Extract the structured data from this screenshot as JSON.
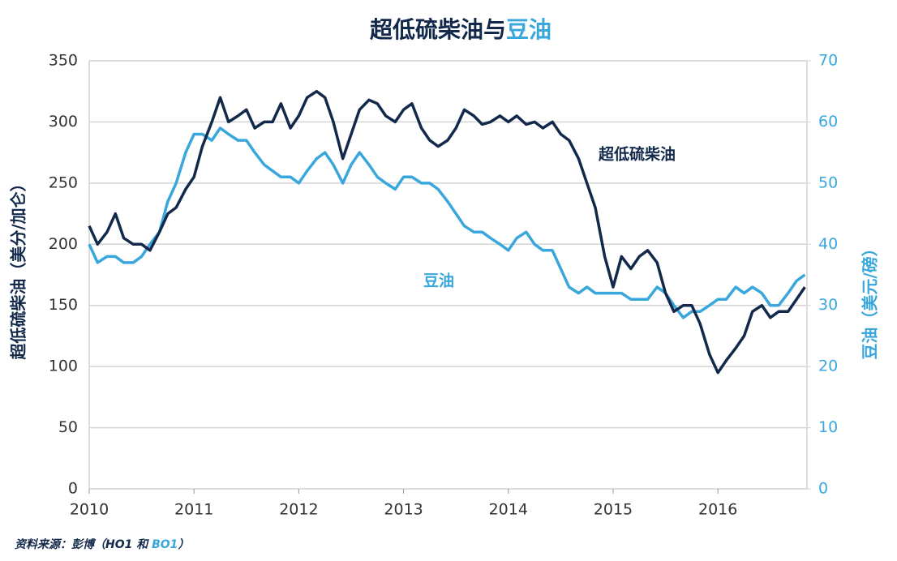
{
  "chart_data": {
    "type": "line",
    "title": [
      "超低硫柴油与",
      "豆油"
    ],
    "y_label": "超低硫柴油（美分/加仑）",
    "y2_label": "豆油（美元/磅）",
    "annotations": [
      "超低硫柴油",
      "豆油"
    ],
    "source": [
      "资料来源：彭博（HO1 和 ",
      "BO1",
      "）"
    ],
    "xlim": [
      2010,
      2016.85
    ],
    "xticks": [
      2010,
      2011,
      2012,
      2013,
      2014,
      2015,
      2016
    ],
    "ylim": [
      0,
      350
    ],
    "yticks": [
      0,
      50,
      100,
      150,
      200,
      250,
      300,
      350
    ],
    "y2lim": [
      0,
      70
    ],
    "y2ticks": [
      0,
      10,
      20,
      30,
      40,
      50,
      60,
      70
    ],
    "grid": true,
    "x": [
      2010.0,
      2010.08,
      2010.17,
      2010.25,
      2010.33,
      2010.42,
      2010.5,
      2010.58,
      2010.67,
      2010.75,
      2010.83,
      2010.92,
      2011.0,
      2011.08,
      2011.17,
      2011.25,
      2011.33,
      2011.42,
      2011.5,
      2011.58,
      2011.67,
      2011.75,
      2011.83,
      2011.92,
      2012.0,
      2012.08,
      2012.17,
      2012.25,
      2012.33,
      2012.42,
      2012.5,
      2012.58,
      2012.67,
      2012.75,
      2012.83,
      2012.92,
      2013.0,
      2013.08,
      2013.17,
      2013.25,
      2013.33,
      2013.42,
      2013.5,
      2013.58,
      2013.67,
      2013.75,
      2013.83,
      2013.92,
      2014.0,
      2014.08,
      2014.17,
      2014.25,
      2014.33,
      2014.42,
      2014.5,
      2014.58,
      2014.67,
      2014.75,
      2014.83,
      2014.92,
      2015.0,
      2015.08,
      2015.17,
      2015.25,
      2015.33,
      2015.42,
      2015.5,
      2015.58,
      2015.67,
      2015.75,
      2015.83,
      2015.92,
      2016.0,
      2016.08,
      2016.17,
      2016.25,
      2016.33,
      2016.42,
      2016.5,
      2016.58,
      2016.67,
      2016.75,
      2016.83
    ],
    "series": [
      {
        "name": "超低硫柴油",
        "color": "#13294b",
        "axis": "y",
        "values": [
          215,
          200,
          210,
          225,
          205,
          200,
          200,
          195,
          210,
          225,
          230,
          245,
          255,
          280,
          300,
          320,
          300,
          305,
          310,
          295,
          300,
          300,
          315,
          295,
          305,
          320,
          325,
          320,
          300,
          270,
          290,
          310,
          318,
          315,
          305,
          300,
          310,
          315,
          295,
          285,
          280,
          285,
          295,
          310,
          305,
          298,
          300,
          305,
          300,
          305,
          298,
          300,
          295,
          300,
          290,
          285,
          270,
          250,
          230,
          190,
          165,
          190,
          180,
          190,
          195,
          185,
          160,
          145,
          150,
          150,
          135,
          110,
          95,
          105,
          115,
          125,
          145,
          150,
          140,
          145,
          145,
          155,
          165
        ]
      },
      {
        "name": "豆油",
        "color": "#3aa7dc",
        "axis": "y2",
        "values": [
          40,
          37,
          38,
          38,
          37,
          37,
          38,
          40,
          42,
          47,
          50,
          55,
          58,
          58,
          57,
          59,
          58,
          57,
          57,
          55,
          53,
          52,
          51,
          51,
          50,
          52,
          54,
          55,
          53,
          50,
          53,
          55,
          53,
          51,
          50,
          49,
          51,
          51,
          50,
          50,
          49,
          47,
          45,
          43,
          42,
          42,
          41,
          40,
          39,
          41,
          42,
          40,
          39,
          39,
          36,
          33,
          32,
          33,
          32,
          32,
          32,
          32,
          31,
          31,
          31,
          33,
          32,
          30,
          28,
          29,
          29,
          30,
          31,
          31,
          33,
          32,
          33,
          32,
          30,
          30,
          32,
          34,
          35
        ]
      }
    ]
  }
}
